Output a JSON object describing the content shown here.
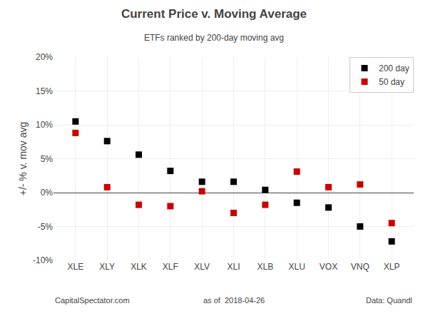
{
  "chart_data": {
    "type": "scatter",
    "title": "Current Price v. Moving Average",
    "subtitle": "ETFs ranked by 200-day moving avg",
    "ylabel": "+/- % v. mov avg",
    "categories": [
      "XLE",
      "XLY",
      "XLK",
      "XLF",
      "XLV",
      "XLI",
      "XLB",
      "XLU",
      "VOX",
      "VNQ",
      "XLP"
    ],
    "series": [
      {
        "name": "200 day",
        "color": "#000000",
        "marker": "square",
        "values": [
          10.5,
          7.6,
          5.6,
          3.2,
          1.6,
          1.6,
          0.4,
          -1.5,
          -2.2,
          -5.0,
          -7.2
        ]
      },
      {
        "name": "50 day",
        "color": "#cc0000",
        "marker": "square",
        "values": [
          8.8,
          0.8,
          -1.8,
          -2.0,
          0.2,
          -3.0,
          -1.8,
          3.1,
          0.8,
          1.2,
          -4.5
        ]
      }
    ],
    "ylim": [
      -10,
      20
    ],
    "yticks": [
      {
        "value": -10,
        "label": "-10%"
      },
      {
        "value": -5,
        "label": "-5%"
      },
      {
        "value": 0,
        "label": "0%"
      },
      {
        "value": 5,
        "label": "5%"
      },
      {
        "value": 10,
        "label": "10%"
      },
      {
        "value": 15,
        "label": "15%"
      },
      {
        "value": 20,
        "label": "20%"
      }
    ],
    "grid": true,
    "legend": "upper right",
    "annotations": [
      "CapitalSpectator.com",
      "as of  2018-04-26",
      "Data: Quandl"
    ]
  }
}
